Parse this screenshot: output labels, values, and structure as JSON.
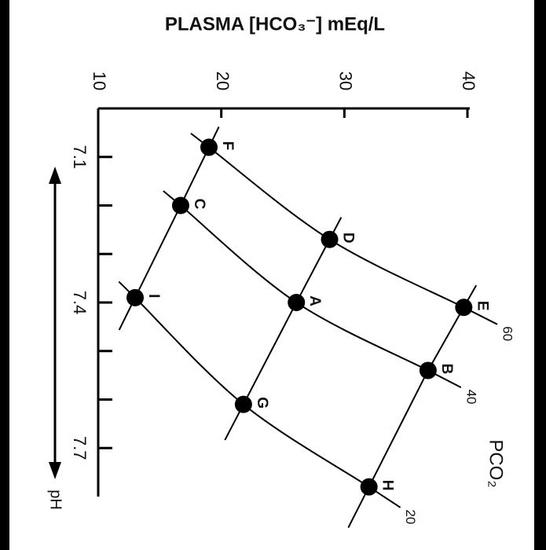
{
  "chart_data": {
    "type": "davenport",
    "title": "PLASMA [HCO₃⁻] mEq/L",
    "x_label": "pH",
    "curve_group_label": "PCO₂",
    "xlim": [
      10,
      40
    ],
    "xticks": [
      10,
      20,
      30,
      40
    ],
    "ylim": [
      7.0,
      7.8
    ],
    "yticks": [
      7.1,
      7.4,
      7.7
    ],
    "y_minor_ticks": [
      7.2,
      7.3,
      7.5,
      7.6
    ],
    "color": "#000000",
    "series": [
      {
        "name": "60",
        "labels": [
          "F",
          "D",
          "E"
        ],
        "x": [
          19.0,
          28.8,
          39.7
        ],
        "y": [
          7.08,
          7.27,
          7.41
        ]
      },
      {
        "name": "40",
        "labels": [
          "C",
          "A",
          "B"
        ],
        "x": [
          16.7,
          26.1,
          36.8
        ],
        "y": [
          7.2,
          7.4,
          7.54
        ]
      },
      {
        "name": "20",
        "labels": [
          "I",
          "G",
          "H"
        ],
        "x": [
          13.0,
          21.8,
          32.0
        ],
        "y": [
          7.39,
          7.61,
          7.78
        ]
      }
    ]
  }
}
